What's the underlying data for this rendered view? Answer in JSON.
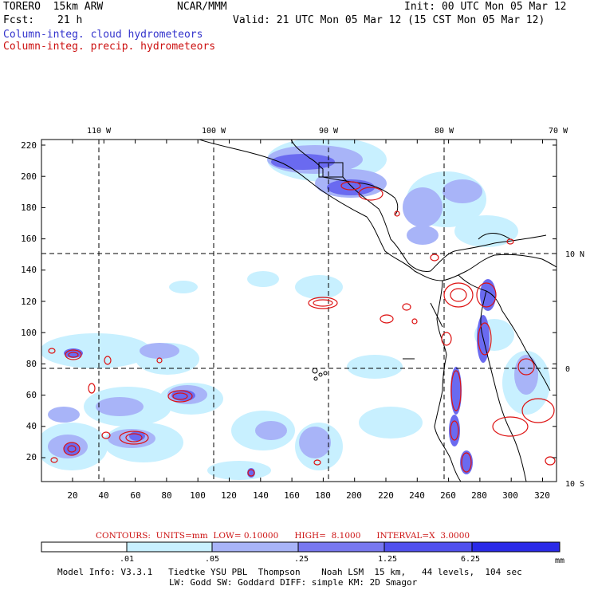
{
  "header": {
    "model": "TORERO  15km ARW",
    "org": "NCAR/MMM",
    "init": "Init: 00 UTC Mon 05 Mar 12",
    "fcst_label": "Fcst:",
    "fcst_value": "21 h",
    "valid": "Valid: 21 UTC Mon 05 Mar 12 (15 CST Mon 05 Mar 12)",
    "legend_cloud": "Column-integ. cloud hydrometeors",
    "legend_precip": "Column-integ. precip. hydrometeors"
  },
  "map": {
    "lon_labels": [
      "110 W",
      "100 W",
      "90 W",
      "80 W",
      "70 W"
    ],
    "lat_labels": [
      "10 N",
      "0",
      "10 S"
    ],
    "y_ticks": [
      "220",
      "200",
      "180",
      "160",
      "140",
      "120",
      "100",
      "80",
      "60",
      "40",
      "20"
    ],
    "x_ticks": [
      "20",
      "40",
      "60",
      "80",
      "100",
      "120",
      "140",
      "160",
      "180",
      "200",
      "220",
      "240",
      "260",
      "280",
      "300",
      "320"
    ],
    "colors": {
      "cloud_fill": "#6a6af0",
      "cloud_light": "#c8f0ff",
      "precip_contour": "#dd1111",
      "coast": "#000000"
    }
  },
  "contours_line": "CONTOURS:  UNITS=mm  LOW= 0.10000      HIGH=  8.1000      INTERVAL=X  3.0000",
  "colorbar": {
    "labels": [
      ".01",
      ".05",
      ".25",
      "1.25",
      "6.25"
    ],
    "unit": "mm",
    "colors": [
      "#ffffff",
      "#c8f0ff",
      "#a8b4f8",
      "#7878f0",
      "#5050ee",
      "#2a2ae8"
    ]
  },
  "footer": {
    "line1": "Model Info: V3.3.1   Tiedtke YSU PBL  Thompson    Noah LSM  15 km,   44 levels,  104 sec",
    "line2": "LW: Godd SW: Goddard DIFF: simple KM: 2D Smagor"
  }
}
